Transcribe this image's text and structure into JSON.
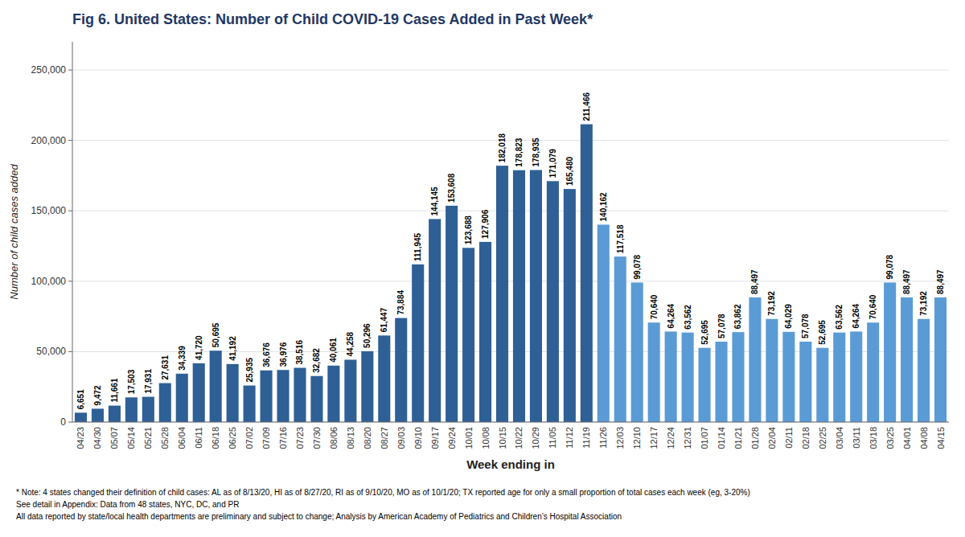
{
  "chart_data": {
    "type": "bar",
    "title": "Fig 6. United States: Number of Child COVID-19 Cases Added in Past Week*",
    "x_label": "Week ending in",
    "y_label": "Number of child cases added",
    "categories": [
      "04/23",
      "04/30",
      "05/07",
      "05/14",
      "05/21",
      "05/28",
      "06/04",
      "06/11",
      "06/18",
      "06/25",
      "07/02",
      "07/09",
      "07/16",
      "07/23",
      "07/30",
      "08/06",
      "08/13",
      "08/20",
      "08/27",
      "09/03",
      "09/10",
      "09/17",
      "09/24",
      "10/01",
      "10/08",
      "10/15",
      "10/22",
      "10/29",
      "11/05",
      "11/12",
      "11/19",
      "11/26",
      "12/03",
      "12/10",
      "12/17",
      "12/24",
      "12/31",
      "01/07",
      "01/14",
      "01/21",
      "01/28",
      "02/04",
      "02/11",
      "02/18",
      "02/25",
      "03/04",
      "03/11",
      "03/18",
      "03/25",
      "04/01",
      "04/08",
      "04/15"
    ],
    "values": [
      6651,
      9472,
      11661,
      17503,
      17931,
      27631,
      34339,
      41720,
      50695,
      41192,
      25935,
      36676,
      36976,
      38516,
      32682,
      40061,
      44258,
      50296,
      61447,
      73884,
      111945,
      144145,
      153608,
      123688,
      127906,
      182018,
      178823,
      178935,
      171079,
      165480,
      211466,
      140162,
      117518,
      99078,
      70640,
      64264,
      63562,
      52695,
      57078,
      63862,
      88497,
      73192,
      64029,
      57078,
      52695,
      63562,
      64264,
      70640,
      99078,
      88497,
      73192,
      88497
    ],
    "value_labels": [
      "6,651",
      "9,472",
      "11,661",
      "17,503",
      "17,931",
      "27,631",
      "34,339",
      "41,720",
      "50,695",
      "41,192",
      "25,935",
      "36,676",
      "36,976",
      "38,516",
      "32,682",
      "40,061",
      "44,258",
      "50,296",
      "61,447",
      "73,884",
      "111,945",
      "144,145",
      "153,608",
      "123,688",
      "127,906",
      "182,018",
      "178,823",
      "178,935",
      "171,079",
      "165,480",
      "211,466",
      "140,162",
      "117,518",
      "99,078",
      "70,640",
      "64,264",
      "63,562",
      "52,695",
      "57,078",
      "63,862",
      "88,497",
      "73,192",
      "64,029",
      "57,078",
      "52,695",
      "63,562",
      "64,264",
      "70,640",
      "99,078",
      "88,497",
      "73,192",
      "88,497"
    ],
    "colors": [
      "#2e6096",
      "#2e6096",
      "#2e6096",
      "#2e6096",
      "#2e6096",
      "#2e6096",
      "#2e6096",
      "#2e6096",
      "#2e6096",
      "#2e6096",
      "#2e6096",
      "#2e6096",
      "#2e6096",
      "#2e6096",
      "#2e6096",
      "#2e6096",
      "#2e6096",
      "#2e6096",
      "#2e6096",
      "#2e6096",
      "#2e6096",
      "#2e6096",
      "#2e6096",
      "#2e6096",
      "#2e6096",
      "#2e6096",
      "#2e6096",
      "#2e6096",
      "#2e6096",
      "#2e6096",
      "#2e6096",
      "#5b9bd5",
      "#5b9bd5",
      "#5b9bd5",
      "#5b9bd5",
      "#5b9bd5",
      "#5b9bd5",
      "#5b9bd5",
      "#5b9bd5",
      "#5b9bd5",
      "#5b9bd5",
      "#5b9bd5",
      "#5b9bd5",
      "#5b9bd5",
      "#5b9bd5",
      "#5b9bd5",
      "#5b9bd5",
      "#5b9bd5",
      "#5b9bd5",
      "#5b9bd5",
      "#5b9bd5",
      "#5b9bd5"
    ],
    "ylim": [
      0,
      270000
    ],
    "yticks": [
      0,
      {
        "value": 50000,
        "label": "50,000"
      },
      {
        "value": 100000,
        "label": "100,000"
      },
      {
        "value": 150000,
        "label": "150,000"
      },
      {
        "value": 200000,
        "label": "200,000"
      },
      {
        "value": 250000,
        "label": "250,000"
      }
    ],
    "grid": true,
    "data_labels": true,
    "annotations": [
      "* Note: 4 states changed their definition of child cases: AL as of 8/13/20, HI as of 8/27/20, RI as of 9/10/20, MO as of 10/1/20; TX reported age for only a small proportion of total cases each week (eg, 3-20%)",
      "See detail in Appendix: Data from 48 states, NYC, DC, and PR",
      "All data reported by state/local health departments are preliminary and subject to change; Analysis by American Academy of Pediatrics and Children’s Hospital Association"
    ]
  }
}
